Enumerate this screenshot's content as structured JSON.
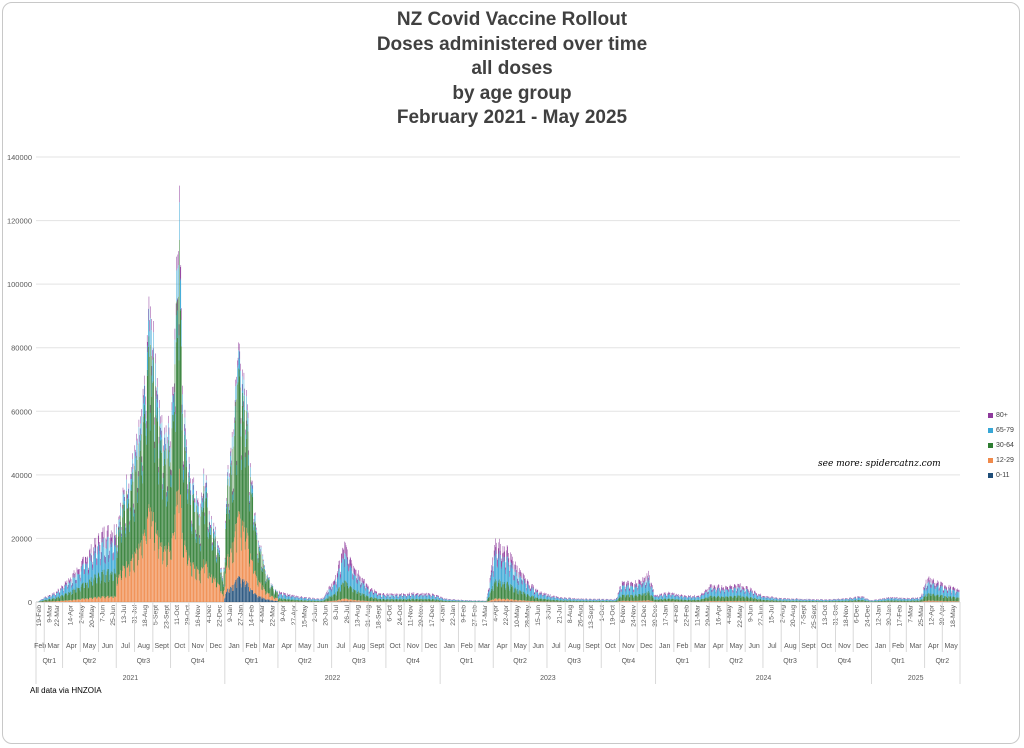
{
  "chart_data": {
    "type": "bar",
    "stacked": true,
    "title_lines": [
      "NZ Covid Vaccine Rollout",
      "Doses administered over time",
      "all doses",
      "by age group",
      "February 2021 - May 2025"
    ],
    "ylim": [
      0,
      140000
    ],
    "y_ticks": [
      "0",
      "20000",
      "40000",
      "60000",
      "80000",
      "100000",
      "120000",
      "140000"
    ],
    "grid": true,
    "legend_position": "right",
    "series": [
      {
        "name": "80+",
        "color": "#8e3a9c"
      },
      {
        "name": "65-79",
        "color": "#38a7d6"
      },
      {
        "name": "30-64",
        "color": "#2e7d32"
      },
      {
        "name": "12-29",
        "color": "#f08a4b"
      },
      {
        "name": "0-11",
        "color": "#1f4e79"
      }
    ],
    "x_week_labels": [
      "19-Feb",
      "9-Mar",
      "22-Mar",
      "14-Apr",
      "2-May",
      "20-May",
      "7-Jun",
      "25-Jun",
      "13-Jul",
      "31-Jul",
      "18-Aug",
      "5-Sept",
      "23-Sept",
      "11-Oct",
      "29-Oct",
      "16-Nov",
      "4-Dec",
      "22-Dec",
      "9-Jan",
      "27-Jan",
      "14-Feb",
      "4-Mar",
      "22-Mar",
      "9-Apr",
      "27-Apr",
      "15-May",
      "2-Jun",
      "20-Jun",
      "8-Jul",
      "26-Jul",
      "13-Aug",
      "31-Aug",
      "18-Sept",
      "6-Oct",
      "24-Oct",
      "11-Nov",
      "29-Nov",
      "17-Dec",
      "4-Jan",
      "22-Jan",
      "9-Feb",
      "27-Feb",
      "17-Mar",
      "4-Apr",
      "22-Apr",
      "10-May",
      "28-May",
      "15-Jun",
      "3-Jul",
      "21-Jul",
      "8-Aug",
      "26-Aug",
      "13-Sept",
      "1-Oct",
      "19-Oct",
      "6-Nov",
      "24-Nov",
      "12-Dec",
      "30-Dec",
      "17-Jan",
      "4-Feb",
      "22-Feb",
      "11-Mar",
      "29-Mar",
      "16-Apr",
      "4-May",
      "22-May",
      "9-Jun",
      "27-Jun",
      "15-Jul",
      "2-Aug",
      "20-Aug",
      "7-Sept",
      "25-Sept",
      "13-Oct",
      "31-Oct",
      "18-Nov",
      "6-Dec",
      "24-Dec",
      "12-Jan",
      "30-Jan",
      "17-Feb",
      "7-Mar",
      "25-Mar",
      "12-Apr",
      "30-Apr",
      "18-May"
    ],
    "x_months": [
      {
        "label": "Feb",
        "date": "2021-02-15",
        "end": "2021-03-01"
      },
      {
        "label": "Mar",
        "date": "2021-03-01",
        "end": "2021-04-01"
      },
      {
        "label": "Apr",
        "date": "2021-04-01",
        "end": "2021-05-01"
      },
      {
        "label": "May",
        "date": "2021-05-01",
        "end": "2021-06-01"
      },
      {
        "label": "Jun",
        "date": "2021-06-01",
        "end": "2021-07-01"
      },
      {
        "label": "Jul",
        "date": "2021-07-01",
        "end": "2021-08-01"
      },
      {
        "label": "Aug",
        "date": "2021-08-01",
        "end": "2021-09-01"
      },
      {
        "label": "Sept",
        "date": "2021-09-01",
        "end": "2021-10-01"
      },
      {
        "label": "Oct",
        "date": "2021-10-01",
        "end": "2021-11-01"
      },
      {
        "label": "Nov",
        "date": "2021-11-01",
        "end": "2021-12-01"
      },
      {
        "label": "Dec",
        "date": "2021-12-01",
        "end": "2022-01-01"
      },
      {
        "label": "Jan",
        "date": "2022-01-01",
        "end": "2022-02-01"
      },
      {
        "label": "Feb",
        "date": "2022-02-01",
        "end": "2022-03-01"
      },
      {
        "label": "Mar",
        "date": "2022-03-01",
        "end": "2022-04-01"
      },
      {
        "label": "Apr",
        "date": "2022-04-01",
        "end": "2022-05-01"
      },
      {
        "label": "May",
        "date": "2022-05-01",
        "end": "2022-06-01"
      },
      {
        "label": "Jun",
        "date": "2022-06-01",
        "end": "2022-07-01"
      },
      {
        "label": "Jul",
        "date": "2022-07-01",
        "end": "2022-08-01"
      },
      {
        "label": "Aug",
        "date": "2022-08-01",
        "end": "2022-09-01"
      },
      {
        "label": "Sept",
        "date": "2022-09-01",
        "end": "2022-10-01"
      },
      {
        "label": "Oct",
        "date": "2022-10-01",
        "end": "2022-11-01"
      },
      {
        "label": "Nov",
        "date": "2022-11-01",
        "end": "2022-12-01"
      },
      {
        "label": "Dec",
        "date": "2022-12-01",
        "end": "2023-01-01"
      },
      {
        "label": "Jan",
        "date": "2023-01-01",
        "end": "2023-02-01"
      },
      {
        "label": "Feb",
        "date": "2023-02-01",
        "end": "2023-03-01"
      },
      {
        "label": "Mar",
        "date": "2023-03-01",
        "end": "2023-04-01"
      },
      {
        "label": "Apr",
        "date": "2023-04-01",
        "end": "2023-05-01"
      },
      {
        "label": "May",
        "date": "2023-05-01",
        "end": "2023-06-01"
      },
      {
        "label": "Jun",
        "date": "2023-06-01",
        "end": "2023-07-01"
      },
      {
        "label": "Jul",
        "date": "2023-07-01",
        "end": "2023-08-01"
      },
      {
        "label": "Aug",
        "date": "2023-08-01",
        "end": "2023-09-01"
      },
      {
        "label": "Sept",
        "date": "2023-09-01",
        "end": "2023-10-01"
      },
      {
        "label": "Oct",
        "date": "2023-10-01",
        "end": "2023-11-01"
      },
      {
        "label": "Nov",
        "date": "2023-11-01",
        "end": "2023-12-01"
      },
      {
        "label": "Dec",
        "date": "2023-12-01",
        "end": "2024-01-01"
      },
      {
        "label": "Jan",
        "date": "2024-01-01",
        "end": "2024-02-01"
      },
      {
        "label": "Feb",
        "date": "2024-02-01",
        "end": "2024-03-01"
      },
      {
        "label": "Mar",
        "date": "2024-03-01",
        "end": "2024-04-01"
      },
      {
        "label": "Apr",
        "date": "2024-04-01",
        "end": "2024-05-01"
      },
      {
        "label": "May",
        "date": "2024-05-01",
        "end": "2024-06-01"
      },
      {
        "label": "Jun",
        "date": "2024-06-01",
        "end": "2024-07-01"
      },
      {
        "label": "Jul",
        "date": "2024-07-01",
        "end": "2024-08-01"
      },
      {
        "label": "Aug",
        "date": "2024-08-01",
        "end": "2024-09-01"
      },
      {
        "label": "Sept",
        "date": "2024-09-01",
        "end": "2024-10-01"
      },
      {
        "label": "Oct",
        "date": "2024-10-01",
        "end": "2024-11-01"
      },
      {
        "label": "Nov",
        "date": "2024-11-01",
        "end": "2024-12-01"
      },
      {
        "label": "Dec",
        "date": "2024-12-01",
        "end": "2025-01-01"
      },
      {
        "label": "Jan",
        "date": "2025-01-01",
        "end": "2025-02-01"
      },
      {
        "label": "Feb",
        "date": "2025-02-01",
        "end": "2025-03-01"
      },
      {
        "label": "Mar",
        "date": "2025-03-01",
        "end": "2025-04-01"
      },
      {
        "label": "Apr",
        "date": "2025-04-01",
        "end": "2025-05-01"
      },
      {
        "label": "May",
        "date": "2025-05-01",
        "end": "2025-05-31"
      }
    ],
    "x_quarters": [
      {
        "label": "Qtr1",
        "date": "2021-02-15",
        "end": "2021-04-01"
      },
      {
        "label": "Qtr2",
        "date": "2021-04-01",
        "end": "2021-07-01"
      },
      {
        "label": "Qtr3",
        "date": "2021-07-01",
        "end": "2021-10-01"
      },
      {
        "label": "Qtr4",
        "date": "2021-10-01",
        "end": "2022-01-01"
      },
      {
        "label": "Qtr1",
        "date": "2022-01-01",
        "end": "2022-04-01"
      },
      {
        "label": "Qtr2",
        "date": "2022-04-01",
        "end": "2022-07-01"
      },
      {
        "label": "Qtr3",
        "date": "2022-07-01",
        "end": "2022-10-01"
      },
      {
        "label": "Qtr4",
        "date": "2022-10-01",
        "end": "2023-01-01"
      },
      {
        "label": "Qtr1",
        "date": "2023-01-01",
        "end": "2023-04-01"
      },
      {
        "label": "Qtr2",
        "date": "2023-04-01",
        "end": "2023-07-01"
      },
      {
        "label": "Qtr3",
        "date": "2023-07-01",
        "end": "2023-10-01"
      },
      {
        "label": "Qtr4",
        "date": "2023-10-01",
        "end": "2024-01-01"
      },
      {
        "label": "Qtr1",
        "date": "2024-01-01",
        "end": "2024-04-01"
      },
      {
        "label": "Qtr2",
        "date": "2024-04-01",
        "end": "2024-07-01"
      },
      {
        "label": "Qtr3",
        "date": "2024-07-01",
        "end": "2024-10-01"
      },
      {
        "label": "Qtr4",
        "date": "2024-10-01",
        "end": "2025-01-01"
      },
      {
        "label": "Qtr1",
        "date": "2025-01-01",
        "end": "2025-04-01"
      },
      {
        "label": "Qtr2",
        "date": "2025-04-01",
        "end": "2025-05-31"
      }
    ],
    "x_years": [
      {
        "label": "2021",
        "date": "2021-02-15",
        "end": "2022-01-01"
      },
      {
        "label": "2022",
        "date": "2022-01-01",
        "end": "2023-01-01"
      },
      {
        "label": "2023",
        "date": "2023-01-01",
        "end": "2024-01-01"
      },
      {
        "label": "2024",
        "date": "2024-01-01",
        "end": "2025-01-01"
      },
      {
        "label": "2025",
        "date": "2025-01-01",
        "end": "2025-05-31"
      }
    ],
    "x_range": [
      "2021-02-15",
      "2025-05-31"
    ],
    "daily_total_keypoints": [
      [
        "2021-02-19",
        300
      ],
      [
        "2021-03-01",
        1500
      ],
      [
        "2021-03-20",
        3000
      ],
      [
        "2021-04-05",
        6000
      ],
      [
        "2021-04-25",
        10000
      ],
      [
        "2021-05-10",
        14000
      ],
      [
        "2021-05-25",
        18000
      ],
      [
        "2021-06-10",
        22000
      ],
      [
        "2021-06-30",
        23000
      ],
      [
        "2021-07-15",
        35000
      ],
      [
        "2021-08-01",
        45000
      ],
      [
        "2021-08-15",
        60000
      ],
      [
        "2021-08-25",
        90000
      ],
      [
        "2021-09-05",
        75000
      ],
      [
        "2021-09-20",
        50000
      ],
      [
        "2021-09-30",
        55000
      ],
      [
        "2021-10-08",
        80000
      ],
      [
        "2021-10-16",
        131000
      ],
      [
        "2021-10-20",
        70000
      ],
      [
        "2021-10-31",
        42000
      ],
      [
        "2021-11-12",
        33000
      ],
      [
        "2021-11-20",
        28000
      ],
      [
        "2021-11-28",
        40000
      ],
      [
        "2021-12-08",
        25000
      ],
      [
        "2021-12-20",
        20000
      ],
      [
        "2021-12-29",
        6000
      ],
      [
        "2022-01-05",
        40000
      ],
      [
        "2022-01-15",
        55000
      ],
      [
        "2022-01-25",
        75000
      ],
      [
        "2022-02-05",
        68000
      ],
      [
        "2022-02-15",
        40000
      ],
      [
        "2022-02-25",
        22000
      ],
      [
        "2022-03-10",
        10000
      ],
      [
        "2022-03-25",
        4000
      ],
      [
        "2022-04-15",
        2500
      ],
      [
        "2022-05-15",
        1500
      ],
      [
        "2022-06-15",
        1000
      ],
      [
        "2022-07-08",
        8000
      ],
      [
        "2022-07-22",
        18000
      ],
      [
        "2022-08-10",
        11000
      ],
      [
        "2022-08-31",
        5000
      ],
      [
        "2022-09-20",
        2500
      ],
      [
        "2022-10-20",
        2500
      ],
      [
        "2022-11-20",
        2800
      ],
      [
        "2022-12-20",
        2500
      ],
      [
        "2023-01-10",
        1000
      ],
      [
        "2023-02-10",
        600
      ],
      [
        "2023-03-20",
        400
      ],
      [
        "2023-04-04",
        19000
      ],
      [
        "2023-04-25",
        16000
      ],
      [
        "2023-05-10",
        11000
      ],
      [
        "2023-05-31",
        6000
      ],
      [
        "2023-06-20",
        3000
      ],
      [
        "2023-07-20",
        1500
      ],
      [
        "2023-08-31",
        1000
      ],
      [
        "2023-10-15",
        900
      ],
      [
        "2023-10-25",
        900
      ],
      [
        "2023-11-04",
        6000
      ],
      [
        "2023-11-25",
        6000
      ],
      [
        "2023-12-20",
        8500
      ],
      [
        "2023-12-31",
        2000
      ],
      [
        "2024-01-20",
        3000
      ],
      [
        "2024-02-20",
        2000
      ],
      [
        "2024-03-15",
        2000
      ],
      [
        "2024-03-31",
        5000
      ],
      [
        "2024-04-30",
        5000
      ],
      [
        "2024-05-20",
        5500
      ],
      [
        "2024-06-05",
        4500
      ],
      [
        "2024-06-30",
        2000
      ],
      [
        "2024-07-31",
        1200
      ],
      [
        "2024-09-15",
        900
      ],
      [
        "2024-10-20",
        800
      ],
      [
        "2024-11-20",
        1200
      ],
      [
        "2024-12-15",
        1800
      ],
      [
        "2024-12-31",
        500
      ],
      [
        "2025-01-31",
        1500
      ],
      [
        "2025-03-05",
        1200
      ],
      [
        "2025-03-25",
        1500
      ],
      [
        "2025-04-05",
        7500
      ],
      [
        "2025-04-25",
        6000
      ],
      [
        "2025-05-25",
        4000
      ]
    ],
    "spikes": [
      [
        "2021-10-16",
        131000
      ],
      [
        "2021-08-28",
        93000
      ],
      [
        "2021-10-08",
        86000
      ],
      [
        "2022-01-22",
        76000
      ],
      [
        "2021-11-26",
        42000
      ],
      [
        "2023-04-04",
        20000
      ],
      [
        "2022-07-22",
        19000
      ],
      [
        "2023-12-20",
        9800
      ]
    ]
  },
  "see_more": "see more: spidercatnz.com",
  "footnote": "All data via HNZOIA"
}
